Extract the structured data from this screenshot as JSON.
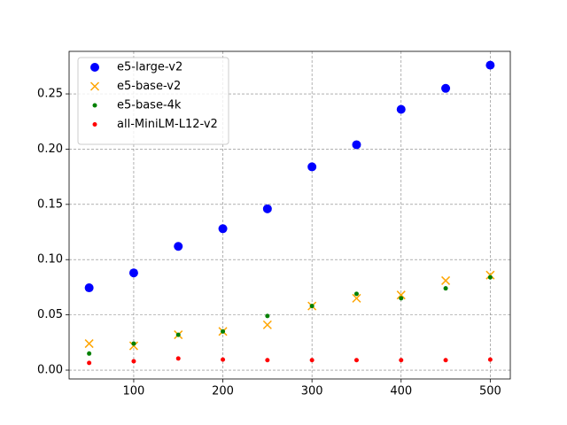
{
  "chart_data": {
    "type": "scatter",
    "x": [
      50,
      100,
      150,
      200,
      250,
      300,
      350,
      400,
      450,
      500
    ],
    "series": [
      {
        "name": "e5-large-v2",
        "color": "#0000ff",
        "marker": "o",
        "marker_size": 5,
        "values": [
          0.0745,
          0.088,
          0.112,
          0.128,
          0.146,
          0.184,
          0.204,
          0.236,
          0.255,
          0.276
        ]
      },
      {
        "name": "e5-base-v2",
        "color": "#ffa500",
        "marker": "x",
        "marker_size": 4.5,
        "values": [
          0.024,
          0.022,
          0.032,
          0.035,
          0.041,
          0.058,
          0.065,
          0.068,
          0.081,
          0.086
        ]
      },
      {
        "name": "e5-base-4k",
        "color": "#008000",
        "marker": "o",
        "marker_size": 2.5,
        "values": [
          0.015,
          0.024,
          0.032,
          0.035,
          0.049,
          0.058,
          0.069,
          0.065,
          0.074,
          0.084
        ]
      },
      {
        "name": "all-MiniLM-L12-v2",
        "color": "#ff0000",
        "marker": "o",
        "marker_size": 2.5,
        "values": [
          0.0065,
          0.008,
          0.0105,
          0.0095,
          0.009,
          0.009,
          0.009,
          0.009,
          0.009,
          0.0095
        ]
      }
    ],
    "xlim": [
      27.5,
      522.5
    ],
    "xticks": [
      100,
      200,
      300,
      400,
      500
    ],
    "ylim": [
      -0.008,
      0.2885
    ],
    "yticks": [
      {
        "value": 0,
        "label": "0.00"
      },
      0.05,
      {
        "value": 0.1,
        "label": "0.10"
      },
      0.15,
      {
        "value": 0.2,
        "label": "0.20"
      },
      0.25
    ],
    "grid": true,
    "legend": "upper left"
  }
}
